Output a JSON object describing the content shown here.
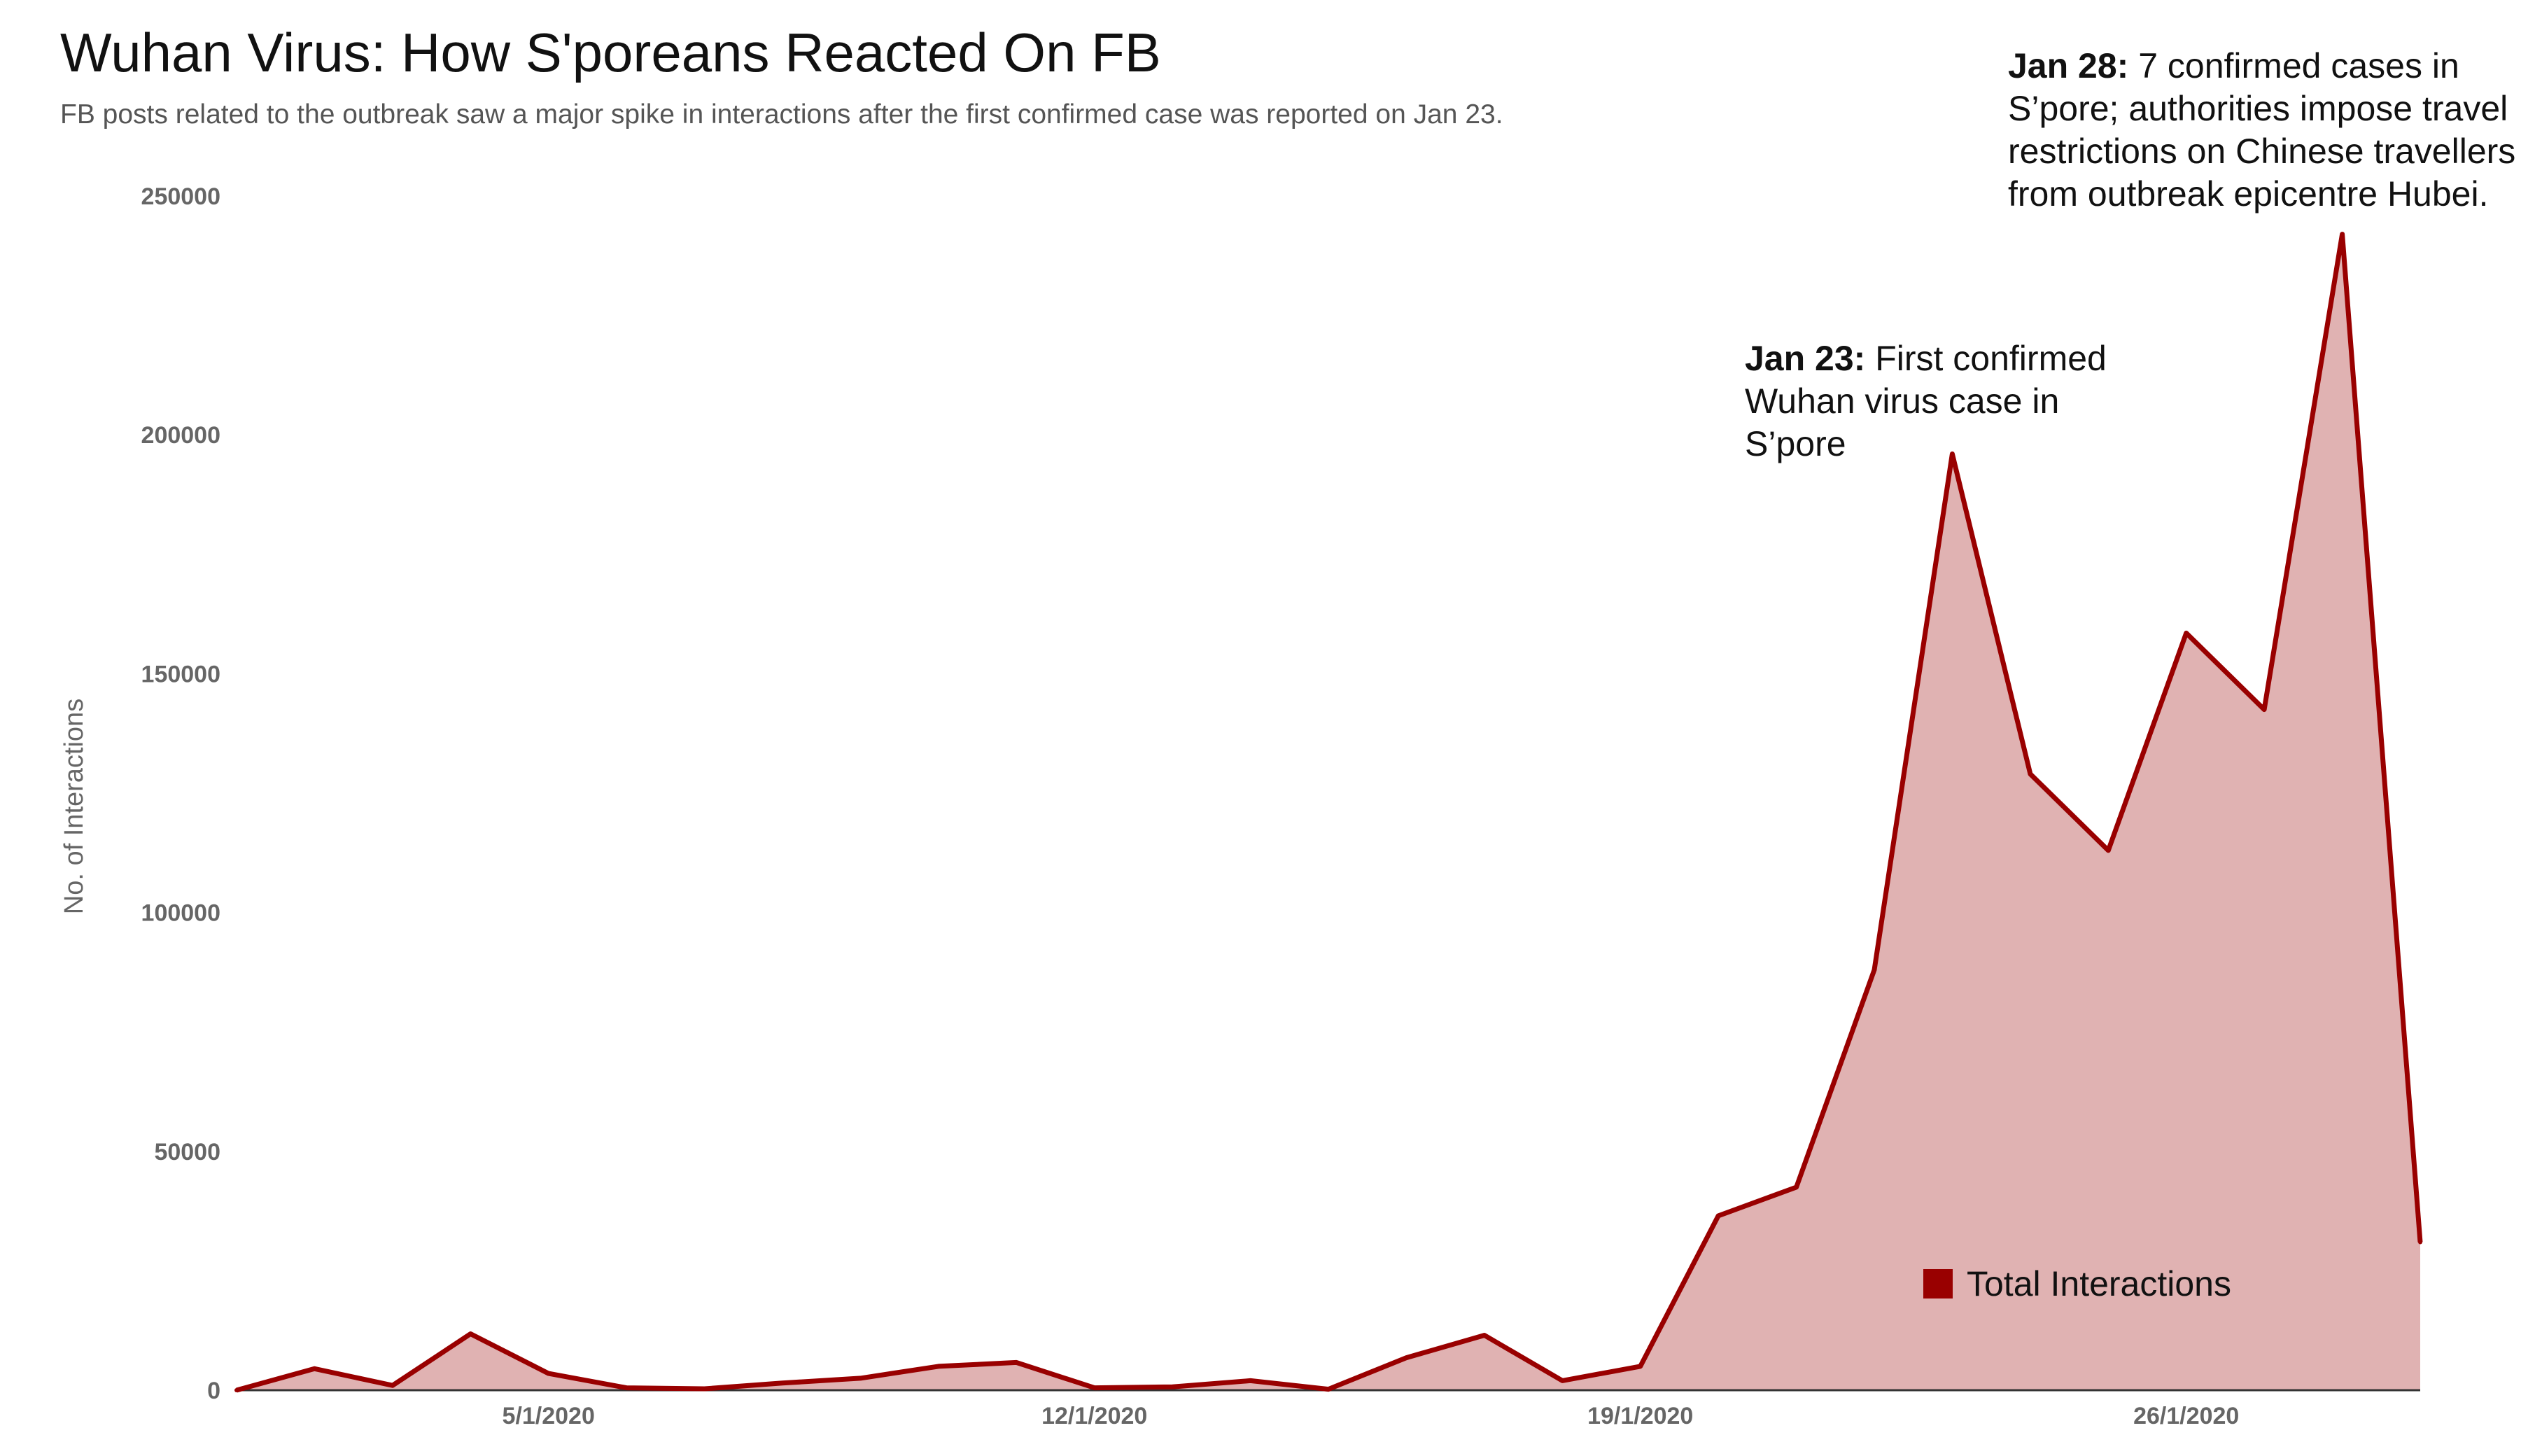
{
  "chart_data": {
    "type": "area",
    "title": "Wuhan Virus: How S'poreans Reacted On FB",
    "subtitle": "FB posts related to the outbreak saw a major spike in interactions after the first confirmed case was reported on Jan 23.",
    "ylabel": "No. of Interactions",
    "xlabel": "",
    "ylim": [
      0,
      250000
    ],
    "yticks": [
      "0",
      "50000",
      "100000",
      "150000",
      "200000",
      "250000"
    ],
    "x_tick_labels": [
      "5/1/2020",
      "12/1/2020",
      "19/1/2020",
      "26/1/2020"
    ],
    "x_tick_index": [
      4,
      11,
      18,
      25
    ],
    "x": [
      "1/1/2020",
      "2/1/2020",
      "3/1/2020",
      "4/1/2020",
      "5/1/2020",
      "6/1/2020",
      "7/1/2020",
      "8/1/2020",
      "9/1/2020",
      "10/1/2020",
      "11/1/2020",
      "12/1/2020",
      "13/1/2020",
      "14/1/2020",
      "15/1/2020",
      "16/1/2020",
      "17/1/2020",
      "18/1/2020",
      "19/1/2020",
      "20/1/2020",
      "21/1/2020",
      "22/1/2020",
      "23/1/2020",
      "24/1/2020",
      "25/1/2020",
      "26/1/2020",
      "27/1/2020",
      "28/1/2020",
      "29/1/2020"
    ],
    "series": [
      {
        "name": "Total Interactions",
        "color": "#990000",
        "fill": "#e0b2b2",
        "values": [
          0,
          4500,
          1000,
          11800,
          3500,
          500,
          300,
          1500,
          2500,
          5000,
          5800,
          500,
          700,
          2000,
          200,
          6800,
          11500,
          2000,
          5000,
          36500,
          42500,
          88000,
          196000,
          129000,
          113000,
          158500,
          142500,
          242000,
          31000
        ]
      }
    ],
    "annotations": [
      {
        "bold": "Jan 23:",
        "text": " First confirmed Wuhan virus case in S’pore"
      },
      {
        "bold": "Jan 28:",
        "text": " 7 confirmed cases in S’pore; authorities impose travel restrictions on Chinese travellers from outbreak epicentre Hubei."
      }
    ],
    "legend": {
      "label": "Total Interactions",
      "position": "bottom-right"
    }
  }
}
